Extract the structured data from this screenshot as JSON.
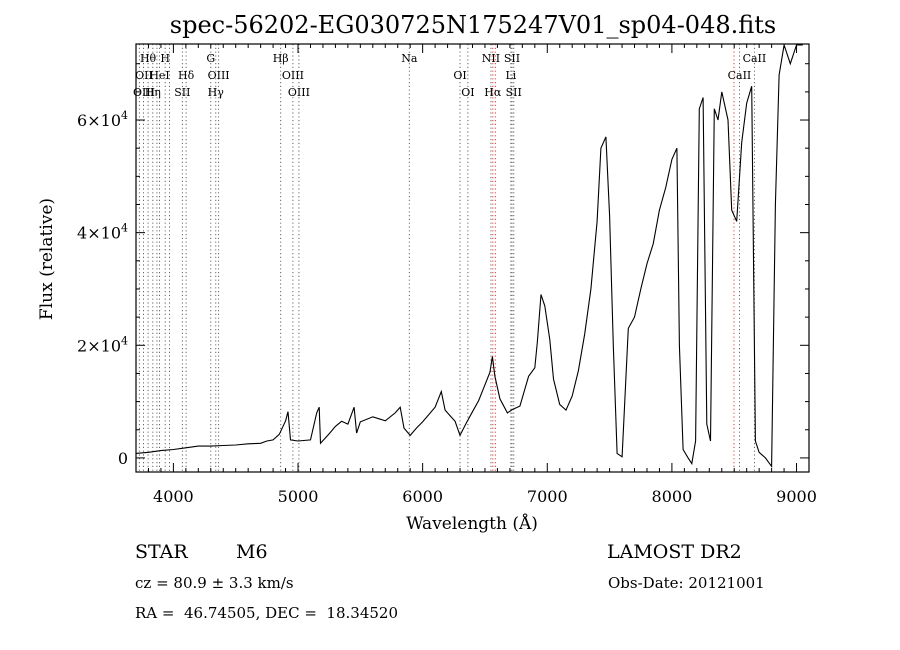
{
  "chart_data": {
    "type": "line",
    "title": "spec-56202-EG030725N175247V01_sp04-048.fits",
    "xlabel": "Wavelength (Å)",
    "ylabel": "Flux (relative)",
    "xlim": [
      3700,
      9100
    ],
    "ylim": [
      -2500,
      73500
    ],
    "x_ticks": [
      4000,
      5000,
      6000,
      7000,
      8000,
      9000
    ],
    "x_tick_labels": [
      "4000",
      "5000",
      "6000",
      "7000",
      "8000",
      "9000"
    ],
    "y_ticks": [
      0,
      20000,
      40000,
      60000
    ],
    "y_tick_labels": [
      {
        "mant": "0",
        "exp": ""
      },
      {
        "mant": "2×10",
        "exp": "4"
      },
      {
        "mant": "4×10",
        "exp": "4"
      },
      {
        "mant": "6×10",
        "exp": "4"
      }
    ],
    "line_markers": [
      {
        "label": "Hθ",
        "x": 3797,
        "row": 0,
        "color": "black"
      },
      {
        "label": "OII",
        "x": 3727,
        "row": 1,
        "color": "black"
      },
      {
        "label": "OIII",
        "x": 3760,
        "row": 2,
        "color": "black"
      },
      {
        "label": "Hη",
        "x": 3835,
        "row": 2,
        "color": "black"
      },
      {
        "label": "H",
        "x": 3934,
        "row": 0,
        "color": "black"
      },
      {
        "label": "HeI",
        "x": 3889,
        "row": 1,
        "color": "black"
      },
      {
        "label": "Hδ",
        "x": 4102,
        "row": 1,
        "color": "black"
      },
      {
        "label": "SII",
        "x": 4072,
        "row": 2,
        "color": "black"
      },
      {
        "label": "G",
        "x": 4300,
        "row": 0,
        "color": "black"
      },
      {
        "label": "OIII",
        "x": 4363,
        "row": 1,
        "color": "black"
      },
      {
        "label": "Hγ",
        "x": 4340,
        "row": 2,
        "color": "black"
      },
      {
        "label": "Hβ",
        "x": 4861,
        "row": 0,
        "color": "black"
      },
      {
        "label": "OIII",
        "x": 4959,
        "row": 1,
        "color": "black"
      },
      {
        "label": "OIII",
        "x": 5007,
        "row": 2,
        "color": "black"
      },
      {
        "label": "Na",
        "x": 5893,
        "row": 0,
        "color": "black"
      },
      {
        "label": "OI",
        "x": 6300,
        "row": 1,
        "color": "black"
      },
      {
        "label": "OI",
        "x": 6363,
        "row": 2,
        "color": "black"
      },
      {
        "label": "NII",
        "x": 6548,
        "row": 0,
        "color": "black"
      },
      {
        "label": "SII",
        "x": 6717,
        "row": 0,
        "color": "black"
      },
      {
        "label": "Li",
        "x": 6708,
        "row": 1,
        "color": "black"
      },
      {
        "label": "Hα",
        "x": 6563,
        "row": 2,
        "color": "red"
      },
      {
        "label": "SII",
        "x": 6731,
        "row": 2,
        "color": "black"
      },
      {
        "label": "CaII",
        "x": 8662,
        "row": 0,
        "color": "black"
      },
      {
        "label": "CaII",
        "x": 8542,
        "row": 1,
        "color": "black"
      }
    ],
    "extra_lines": [
      {
        "x": 3868,
        "color": "black"
      },
      {
        "x": 3969,
        "color": "black"
      },
      {
        "x": 6583,
        "color": "red"
      },
      {
        "x": 8498,
        "color": "red"
      }
    ],
    "spectrum": [
      [
        3700,
        800
      ],
      [
        3800,
        1000
      ],
      [
        3900,
        1300
      ],
      [
        4000,
        1500
      ],
      [
        4100,
        1800
      ],
      [
        4200,
        2100
      ],
      [
        4300,
        2100
      ],
      [
        4400,
        2200
      ],
      [
        4500,
        2300
      ],
      [
        4600,
        2500
      ],
      [
        4700,
        2600
      ],
      [
        4750,
        3000
      ],
      [
        4800,
        3200
      ],
      [
        4850,
        4200
      ],
      [
        4900,
        6600
      ],
      [
        4920,
        8200
      ],
      [
        4940,
        3200
      ],
      [
        5000,
        3000
      ],
      [
        5100,
        3200
      ],
      [
        5150,
        8000
      ],
      [
        5170,
        9000
      ],
      [
        5180,
        2600
      ],
      [
        5250,
        4300
      ],
      [
        5300,
        5600
      ],
      [
        5350,
        6500
      ],
      [
        5400,
        6000
      ],
      [
        5450,
        9000
      ],
      [
        5470,
        4400
      ],
      [
        5500,
        6400
      ],
      [
        5600,
        7300
      ],
      [
        5700,
        6600
      ],
      [
        5780,
        8000
      ],
      [
        5820,
        9000
      ],
      [
        5850,
        5300
      ],
      [
        5900,
        4000
      ],
      [
        5950,
        5300
      ],
      [
        6000,
        6400
      ],
      [
        6100,
        9000
      ],
      [
        6150,
        11800
      ],
      [
        6180,
        8500
      ],
      [
        6220,
        7500
      ],
      [
        6260,
        6500
      ],
      [
        6300,
        4000
      ],
      [
        6350,
        6200
      ],
      [
        6400,
        8200
      ],
      [
        6450,
        10200
      ],
      [
        6500,
        13000
      ],
      [
        6540,
        15200
      ],
      [
        6560,
        18000
      ],
      [
        6580,
        14500
      ],
      [
        6620,
        10500
      ],
      [
        6680,
        8000
      ],
      [
        6720,
        8600
      ],
      [
        6780,
        9200
      ],
      [
        6850,
        14500
      ],
      [
        6900,
        16000
      ],
      [
        6920,
        20500
      ],
      [
        6950,
        29000
      ],
      [
        6980,
        27000
      ],
      [
        7020,
        21000
      ],
      [
        7050,
        14000
      ],
      [
        7100,
        9500
      ],
      [
        7150,
        8500
      ],
      [
        7200,
        11000
      ],
      [
        7250,
        15500
      ],
      [
        7300,
        22000
      ],
      [
        7350,
        30000
      ],
      [
        7400,
        42000
      ],
      [
        7430,
        55000
      ],
      [
        7470,
        57000
      ],
      [
        7500,
        43000
      ],
      [
        7530,
        20000
      ],
      [
        7560,
        800
      ],
      [
        7600,
        200
      ],
      [
        7650,
        23000
      ],
      [
        7700,
        25000
      ],
      [
        7750,
        30000
      ],
      [
        7800,
        34500
      ],
      [
        7850,
        38000
      ],
      [
        7900,
        44000
      ],
      [
        7950,
        48000
      ],
      [
        8000,
        53000
      ],
      [
        8040,
        55000
      ],
      [
        8060,
        20000
      ],
      [
        8090,
        1500
      ],
      [
        8130,
        0
      ],
      [
        8160,
        -1000
      ],
      [
        8190,
        3000
      ],
      [
        8220,
        62000
      ],
      [
        8250,
        64000
      ],
      [
        8280,
        6000
      ],
      [
        8310,
        3000
      ],
      [
        8340,
        62000
      ],
      [
        8370,
        60000
      ],
      [
        8400,
        65000
      ],
      [
        8450,
        60000
      ],
      [
        8480,
        44000
      ],
      [
        8520,
        42000
      ],
      [
        8560,
        56000
      ],
      [
        8600,
        63000
      ],
      [
        8640,
        66000
      ],
      [
        8670,
        3000
      ],
      [
        8700,
        1000
      ],
      [
        8750,
        0
      ],
      [
        8800,
        -1500
      ],
      [
        8830,
        45000
      ],
      [
        8860,
        68000
      ],
      [
        8900,
        73500
      ],
      [
        8950,
        70000
      ],
      [
        9000,
        73500
      ],
      [
        9050,
        73500
      ]
    ]
  },
  "info": {
    "object_type": "STAR",
    "subclass": "M6",
    "survey": "LAMOST DR2",
    "cz": "cz = 80.9 ± 3.3 km/s",
    "obs_date": "Obs-Date: 20121001",
    "coords": "RA =  46.74505, DEC =  18.34520"
  }
}
